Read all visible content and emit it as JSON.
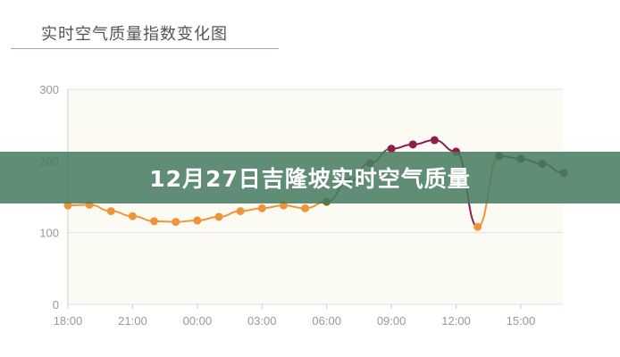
{
  "chart_data": {
    "type": "line",
    "title": "实时空气质量指数变化图",
    "x": [
      "18:00",
      "19:00",
      "20:00",
      "21:00",
      "22:00",
      "23:00",
      "00:00",
      "01:00",
      "02:00",
      "03:00",
      "04:00",
      "05:00",
      "06:00",
      "07:00",
      "08:00",
      "09:00",
      "10:00",
      "11:00",
      "12:00",
      "13:00",
      "14:00",
      "15:00",
      "16:00",
      "17:00"
    ],
    "values": [
      138,
      139,
      130,
      123,
      116,
      115,
      117,
      122,
      130,
      134,
      138,
      134,
      143,
      170,
      197,
      217,
      223,
      229,
      213,
      108,
      207,
      203,
      196,
      183
    ],
    "point_colors": [
      "#f0943a",
      "#f0943a",
      "#f0943a",
      "#f0943a",
      "#f0943a",
      "#f0943a",
      "#f0943a",
      "#f0943a",
      "#f0943a",
      "#f0943a",
      "#f0943a",
      "#f0943a",
      "#7d6a35",
      "#7a5a2e",
      "#7a5a2e",
      "#8e1d4c",
      "#8e1d4c",
      "#8e1d4c",
      "#8e1d4c",
      "#f0943a",
      "#4a4a4a",
      "#4a4a4a",
      "#6b4a2e",
      "#6b4a2e"
    ],
    "xticks": [
      "18:00",
      "21:00",
      "00:00",
      "03:00",
      "06:00",
      "09:00",
      "12:00",
      "15:00"
    ],
    "yticks": [
      0,
      100,
      200,
      300
    ],
    "ylim": [
      0,
      300
    ],
    "grid": true,
    "area_fill": "#fbfbf3"
  },
  "banner": {
    "text": "12月27日吉隆坡实时空气质量"
  }
}
